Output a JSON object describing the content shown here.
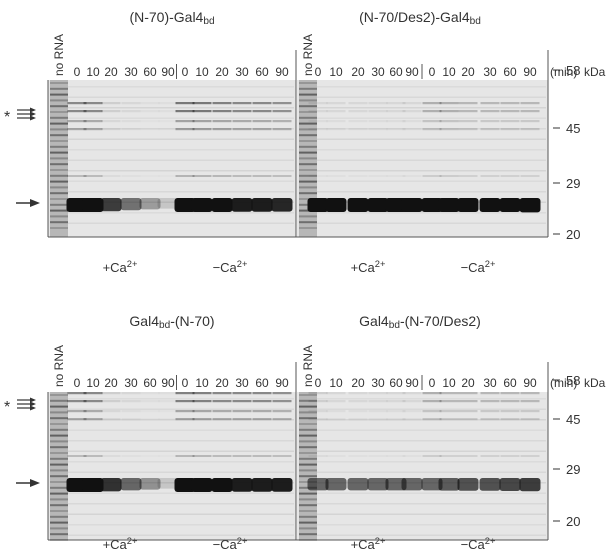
{
  "panels": [
    {
      "gels": [
        {
          "title": [
            {
              "t": "(N-70)-Gal4"
            },
            {
              "s": "bd"
            }
          ],
          "no_rna": "no RNA",
          "lanes": [
            "0",
            "10",
            "20",
            "30",
            "60",
            "90",
            "0",
            "10",
            "20",
            "30",
            "60",
            "90"
          ],
          "conditions": [
            [
              {
                "t": "+Ca"
              },
              {
                "u": "2+"
              }
            ],
            [
              {
                "t": "−Ca"
              },
              {
                "u": "2+"
              }
            ]
          ]
        },
        {
          "title": [
            {
              "t": "(N-70/Des2)-Gal4"
            },
            {
              "s": "bd"
            }
          ],
          "no_rna": "no RNA",
          "lanes": [
            "0",
            "10",
            "20",
            "30",
            "60",
            "90",
            "0",
            "10",
            "20",
            "30",
            "60",
            "90"
          ],
          "conditions": [
            [
              {
                "t": "+Ca"
              },
              {
                "u": "2+"
              }
            ],
            [
              {
                "t": "−Ca"
              },
              {
                "u": "2+"
              }
            ]
          ]
        }
      ],
      "unit": "(min)",
      "kda": "kDa",
      "markers": [
        58,
        45,
        29,
        20
      ],
      "star": "*"
    },
    {
      "gels": [
        {
          "title": [
            {
              "t": "Gal4"
            },
            {
              "s": "bd"
            },
            {
              "t": "-(N-70)"
            }
          ],
          "no_rna": "no RNA",
          "lanes": [
            "0",
            "10",
            "20",
            "30",
            "60",
            "90",
            "0",
            "10",
            "20",
            "30",
            "60",
            "90"
          ],
          "conditions": [
            [
              {
                "t": "+Ca"
              },
              {
                "u": "2+"
              }
            ],
            [
              {
                "t": "−Ca"
              },
              {
                "u": "2+"
              }
            ]
          ]
        },
        {
          "title": [
            {
              "t": "Gal4"
            },
            {
              "s": "bd"
            },
            {
              "t": "-(N-70/Des2)"
            }
          ],
          "no_rna": "no RNA",
          "lanes": [
            "0",
            "10",
            "20",
            "30",
            "60",
            "90",
            "0",
            "10",
            "20",
            "30",
            "60",
            "90"
          ],
          "conditions": [
            [
              {
                "t": "+Ca"
              },
              {
                "u": "2+"
              }
            ],
            [
              {
                "t": "−Ca"
              },
              {
                "u": "2+"
              }
            ]
          ]
        }
      ],
      "unit": "(min)",
      "kda": "kDa",
      "markers": [
        58,
        45,
        29,
        20
      ],
      "star": "*"
    }
  ]
}
